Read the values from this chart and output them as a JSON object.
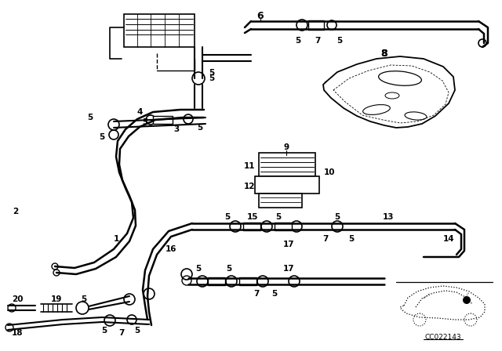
{
  "bg_color": "#ffffff",
  "line_color": "#000000",
  "code_text": "CC022143"
}
